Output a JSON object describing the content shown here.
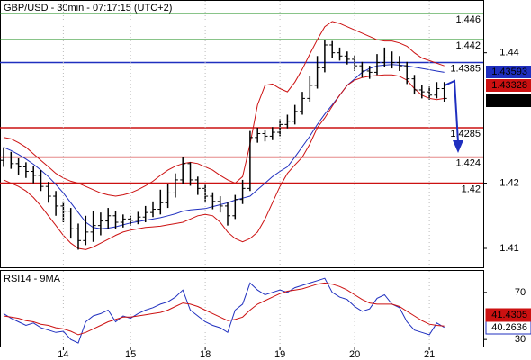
{
  "chart_data": [
    {
      "type": "ohlc",
      "title": "GBP/USD - 30min - 07:17:15 (UTC+2)",
      "ylim": [
        1.4071,
        1.4481
      ],
      "yticks": [
        1.41,
        1.42,
        1.44
      ],
      "bar_color": "#000000",
      "open": [
        1.4235,
        1.424,
        1.423,
        1.4225,
        1.4218,
        1.4212,
        1.4195,
        1.418,
        1.4165,
        1.4157,
        1.413,
        1.4112,
        1.4125,
        1.4135,
        1.4142,
        1.415,
        1.414,
        1.4145,
        1.4143,
        1.4148,
        1.4155,
        1.416,
        1.417,
        1.4185,
        1.4205,
        1.423,
        1.4205,
        1.4192,
        1.418,
        1.4172,
        1.4165,
        1.415,
        1.4175,
        1.4192,
        1.427,
        1.4276,
        1.4272,
        1.4278,
        1.429,
        1.4295,
        1.431,
        1.433,
        1.435,
        1.4377,
        1.4412,
        1.44,
        1.4395,
        1.439,
        1.438,
        1.4372,
        1.437,
        1.4385,
        1.4392,
        1.4385,
        1.438,
        1.436,
        1.4343,
        1.434,
        1.4335,
        1.4345
      ],
      "high": [
        1.4255,
        1.4248,
        1.4238,
        1.4232,
        1.4226,
        1.422,
        1.4202,
        1.4188,
        1.4172,
        1.4162,
        1.4138,
        1.415,
        1.4158,
        1.4155,
        1.4162,
        1.4158,
        1.4152,
        1.415,
        1.4156,
        1.4165,
        1.4172,
        1.419,
        1.4198,
        1.4215,
        1.424,
        1.4232,
        1.421,
        1.4198,
        1.4186,
        1.418,
        1.417,
        1.4182,
        1.4205,
        1.428,
        1.4285,
        1.4282,
        1.4286,
        1.4298,
        1.4305,
        1.432,
        1.434,
        1.4365,
        1.4395,
        1.442,
        1.4418,
        1.4408,
        1.4402,
        1.4396,
        1.4386,
        1.438,
        1.4398,
        1.4408,
        1.4402,
        1.4395,
        1.4386,
        1.4366,
        1.435,
        1.4348,
        1.4355,
        1.4355
      ],
      "low": [
        1.4225,
        1.4222,
        1.4212,
        1.4208,
        1.42,
        1.4188,
        1.417,
        1.415,
        1.414,
        1.4115,
        1.4098,
        1.4105,
        1.411,
        1.412,
        1.413,
        1.413,
        1.4132,
        1.4135,
        1.4137,
        1.414,
        1.4148,
        1.4152,
        1.4162,
        1.4178,
        1.4198,
        1.4196,
        1.4182,
        1.4172,
        1.416,
        1.4155,
        1.4135,
        1.4145,
        1.4168,
        1.4188,
        1.4262,
        1.4264,
        1.4266,
        1.4272,
        1.4284,
        1.429,
        1.4305,
        1.4325,
        1.4345,
        1.437,
        1.4392,
        1.4388,
        1.4382,
        1.4372,
        1.4362,
        1.436,
        1.4366,
        1.4378,
        1.4376,
        1.4372,
        1.4352,
        1.4336,
        1.433,
        1.4328,
        1.433,
        1.4325
      ],
      "close": [
        1.424,
        1.423,
        1.4225,
        1.4218,
        1.4212,
        1.4195,
        1.418,
        1.4165,
        1.4157,
        1.413,
        1.4112,
        1.4125,
        1.4135,
        1.4142,
        1.415,
        1.414,
        1.4145,
        1.4143,
        1.4148,
        1.4155,
        1.416,
        1.417,
        1.4185,
        1.4205,
        1.423,
        1.4205,
        1.4192,
        1.418,
        1.4172,
        1.4165,
        1.415,
        1.4175,
        1.4192,
        1.427,
        1.4276,
        1.4272,
        1.4278,
        1.429,
        1.4295,
        1.431,
        1.433,
        1.435,
        1.4377,
        1.4412,
        1.44,
        1.4395,
        1.439,
        1.438,
        1.4372,
        1.437,
        1.4385,
        1.4392,
        1.4385,
        1.438,
        1.436,
        1.4343,
        1.434,
        1.4335,
        1.4345,
        1.433
      ],
      "lines": [
        {
          "color": "#1f2fbf",
          "values": [
            1.4255,
            1.425,
            1.4244,
            1.4237,
            1.4229,
            1.422,
            1.421,
            1.4198,
            1.4185,
            1.417,
            1.4155,
            1.414,
            1.4132,
            1.413,
            1.4131,
            1.4133,
            1.4136,
            1.4139,
            1.4141,
            1.4143,
            1.4145,
            1.4147,
            1.415,
            1.4153,
            1.4157,
            1.4159,
            1.416,
            1.4161,
            1.4164,
            1.4167,
            1.417,
            1.4174,
            1.4177,
            1.418,
            1.419,
            1.42,
            1.421,
            1.4218,
            1.4225,
            1.424,
            1.4256,
            1.4272,
            1.429,
            1.4306,
            1.432,
            1.4335,
            1.435,
            1.436,
            1.437,
            1.4376,
            1.438,
            1.4381,
            1.4382,
            1.4381,
            1.438,
            1.4378,
            1.4376,
            1.4374,
            1.4372,
            1.437
          ]
        },
        {
          "color": "#cc1111",
          "values": [
            1.427,
            1.4268,
            1.4262,
            1.4255,
            1.4245,
            1.4235,
            1.4225,
            1.4215,
            1.4208,
            1.4203,
            1.42,
            1.4195,
            1.419,
            1.4185,
            1.4182,
            1.418,
            1.4182,
            1.4185,
            1.419,
            1.4196,
            1.4203,
            1.4212,
            1.422,
            1.4226,
            1.423,
            1.4232,
            1.423,
            1.4225,
            1.422,
            1.4212,
            1.4205,
            1.42,
            1.421,
            1.426,
            1.432,
            1.435,
            1.4352,
            1.4345,
            1.434,
            1.4355,
            1.4375,
            1.4398,
            1.442,
            1.444,
            1.4448,
            1.4445,
            1.444,
            1.4435,
            1.443,
            1.4425,
            1.442,
            1.4418,
            1.4418,
            1.4415,
            1.441,
            1.44,
            1.4392,
            1.4388,
            1.4384,
            1.438
          ]
        },
        {
          "color": "#cc1111",
          "values": [
            1.4205,
            1.42,
            1.4195,
            1.4188,
            1.4178,
            1.4165,
            1.415,
            1.4135,
            1.412,
            1.4108,
            1.41,
            1.4098,
            1.4102,
            1.4108,
            1.4114,
            1.412,
            1.4125,
            1.4128,
            1.413,
            1.4132,
            1.4133,
            1.4134,
            1.4136,
            1.4138,
            1.414,
            1.4145,
            1.415,
            1.4152,
            1.415,
            1.414,
            1.4125,
            1.4115,
            1.411,
            1.4115,
            1.4125,
            1.4145,
            1.417,
            1.4195,
            1.4215,
            1.4228,
            1.424,
            1.426,
            1.4285,
            1.43,
            1.4318,
            1.4335,
            1.435,
            1.4358,
            1.4362,
            1.4364,
            1.4365,
            1.4366,
            1.4366,
            1.4364,
            1.4358,
            1.4345,
            1.4335,
            1.433,
            1.4328,
            1.433
          ]
        }
      ],
      "levels": [
        {
          "value": 1.446,
          "color": "#138a13"
        },
        {
          "value": 1.442,
          "color": "#138a13"
        },
        {
          "value": 1.4385,
          "color": "#1f2fbf"
        },
        {
          "value": 1.4285,
          "color": "#cc1111"
        },
        {
          "value": 1.424,
          "color": "#cc1111"
        },
        {
          "value": 1.42,
          "color": "#cc1111"
        }
      ],
      "tags": [
        {
          "value": 1.43593,
          "color": "#1f2fbf"
        },
        {
          "value": 1.43328,
          "color": "#cc1111"
        },
        {
          "value": 1.433,
          "color": "#000000"
        }
      ]
    },
    {
      "type": "line",
      "title": "RSI14 - 9MA",
      "ylim": [
        24,
        89
      ],
      "yticks": [
        30,
        70
      ],
      "categories": [
        null,
        null,
        null,
        null,
        null,
        null,
        null,
        null,
        "14",
        null,
        null,
        null,
        null,
        null,
        null,
        null,
        null,
        "15",
        null,
        null,
        null,
        null,
        null,
        null,
        null,
        null,
        null,
        "18",
        null,
        null,
        null,
        null,
        null,
        null,
        null,
        null,
        null,
        "19",
        null,
        null,
        null,
        null,
        null,
        null,
        null,
        null,
        null,
        "20",
        null,
        null,
        null,
        null,
        null,
        null,
        null,
        null,
        null,
        "21",
        null,
        null
      ],
      "series": [
        {
          "color": "#1f2fbf",
          "values": [
            52,
            48,
            45,
            42,
            44,
            40,
            38,
            36,
            37,
            30,
            27,
            45,
            50,
            52,
            55,
            45,
            50,
            48,
            52,
            55,
            57,
            60,
            62,
            66,
            72,
            55,
            50,
            45,
            42,
            40,
            36,
            55,
            60,
            78,
            72,
            68,
            70,
            72,
            70,
            74,
            76,
            78,
            80,
            82,
            70,
            66,
            64,
            58,
            54,
            56,
            65,
            68,
            60,
            57,
            45,
            38,
            36,
            34,
            44,
            40.2636
          ]
        },
        {
          "color": "#cc1111",
          "values": [
            50,
            49,
            48,
            46,
            45,
            43,
            42,
            40,
            39,
            37,
            34,
            36,
            39,
            42,
            45,
            47,
            49,
            49,
            50,
            51,
            52,
            53,
            55,
            58,
            61,
            60,
            58,
            55,
            52,
            49,
            46,
            47,
            49,
            55,
            60,
            63,
            66,
            69,
            71,
            72,
            73,
            75,
            77,
            78,
            77,
            75,
            72,
            68,
            64,
            61,
            60,
            60,
            60,
            58,
            54,
            50,
            46,
            43,
            42,
            41.4305
          ]
        }
      ]
    }
  ]
}
